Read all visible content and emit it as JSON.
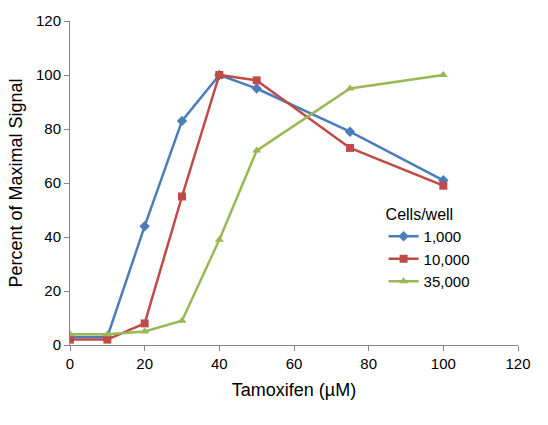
{
  "chart_data": {
    "type": "line",
    "x_label": "Tamoxifen (µM)",
    "y_label": "Percent of Maximal Signal",
    "legend_title": "Cells/well",
    "legend": "right",
    "grid": false,
    "x": [
      0,
      10,
      20,
      30,
      40,
      50,
      75,
      100
    ],
    "series": [
      {
        "name": "1,000",
        "color": "#4a7ebb",
        "marker": "diamond",
        "values": [
          3,
          3,
          44,
          83,
          100,
          95,
          79,
          61
        ]
      },
      {
        "name": "10,000",
        "color": "#be4b48",
        "marker": "square",
        "values": [
          2,
          2,
          8,
          55,
          100,
          98,
          73,
          59
        ]
      },
      {
        "name": "35,000",
        "color": "#98b954",
        "marker": "triangle-up",
        "values": [
          4,
          4,
          5,
          9,
          39,
          72,
          95,
          100
        ]
      }
    ],
    "xlim": [
      0,
      120
    ],
    "xticks": [
      0,
      20,
      40,
      60,
      80,
      100,
      120
    ],
    "ylim": [
      0,
      120
    ],
    "yticks": [
      0,
      20,
      40,
      60,
      80,
      100,
      120
    ]
  }
}
